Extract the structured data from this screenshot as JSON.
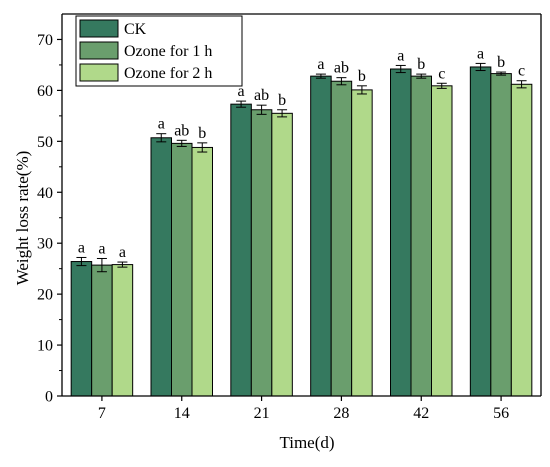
{
  "chart_data": {
    "type": "bar",
    "title": "",
    "xlabel": "Time(d)",
    "ylabel": "Weight loss rate(%)",
    "ylim": [
      0,
      75
    ],
    "yticks": [
      0,
      10,
      20,
      30,
      40,
      50,
      60,
      70
    ],
    "categories": [
      "7",
      "14",
      "21",
      "28",
      "42",
      "56"
    ],
    "legend_position": "top-left",
    "grid": false,
    "series": [
      {
        "name": "CK",
        "color": "#35795f",
        "values": [
          26.4,
          50.7,
          57.3,
          62.8,
          64.2,
          64.6
        ],
        "errors": [
          0.8,
          0.8,
          0.6,
          0.4,
          0.7,
          0.7
        ],
        "letters": [
          "a",
          "a",
          "a",
          "a",
          "a",
          "a"
        ]
      },
      {
        "name": "Ozone for 1 h",
        "color": "#6a9e6d",
        "values": [
          25.7,
          49.6,
          56.2,
          61.8,
          62.8,
          63.3
        ],
        "errors": [
          1.3,
          0.6,
          0.9,
          0.7,
          0.4,
          0.3
        ],
        "letters": [
          "a",
          "ab",
          "ab",
          "ab",
          "b",
          "b"
        ]
      },
      {
        "name": "Ozone for 2 h",
        "color": "#b0d98a",
        "values": [
          25.8,
          48.8,
          55.5,
          60.1,
          60.9,
          61.2
        ],
        "errors": [
          0.5,
          0.9,
          0.7,
          0.8,
          0.5,
          0.7
        ],
        "letters": [
          "a",
          "b",
          "b",
          "b",
          "c",
          "c"
        ]
      }
    ]
  }
}
